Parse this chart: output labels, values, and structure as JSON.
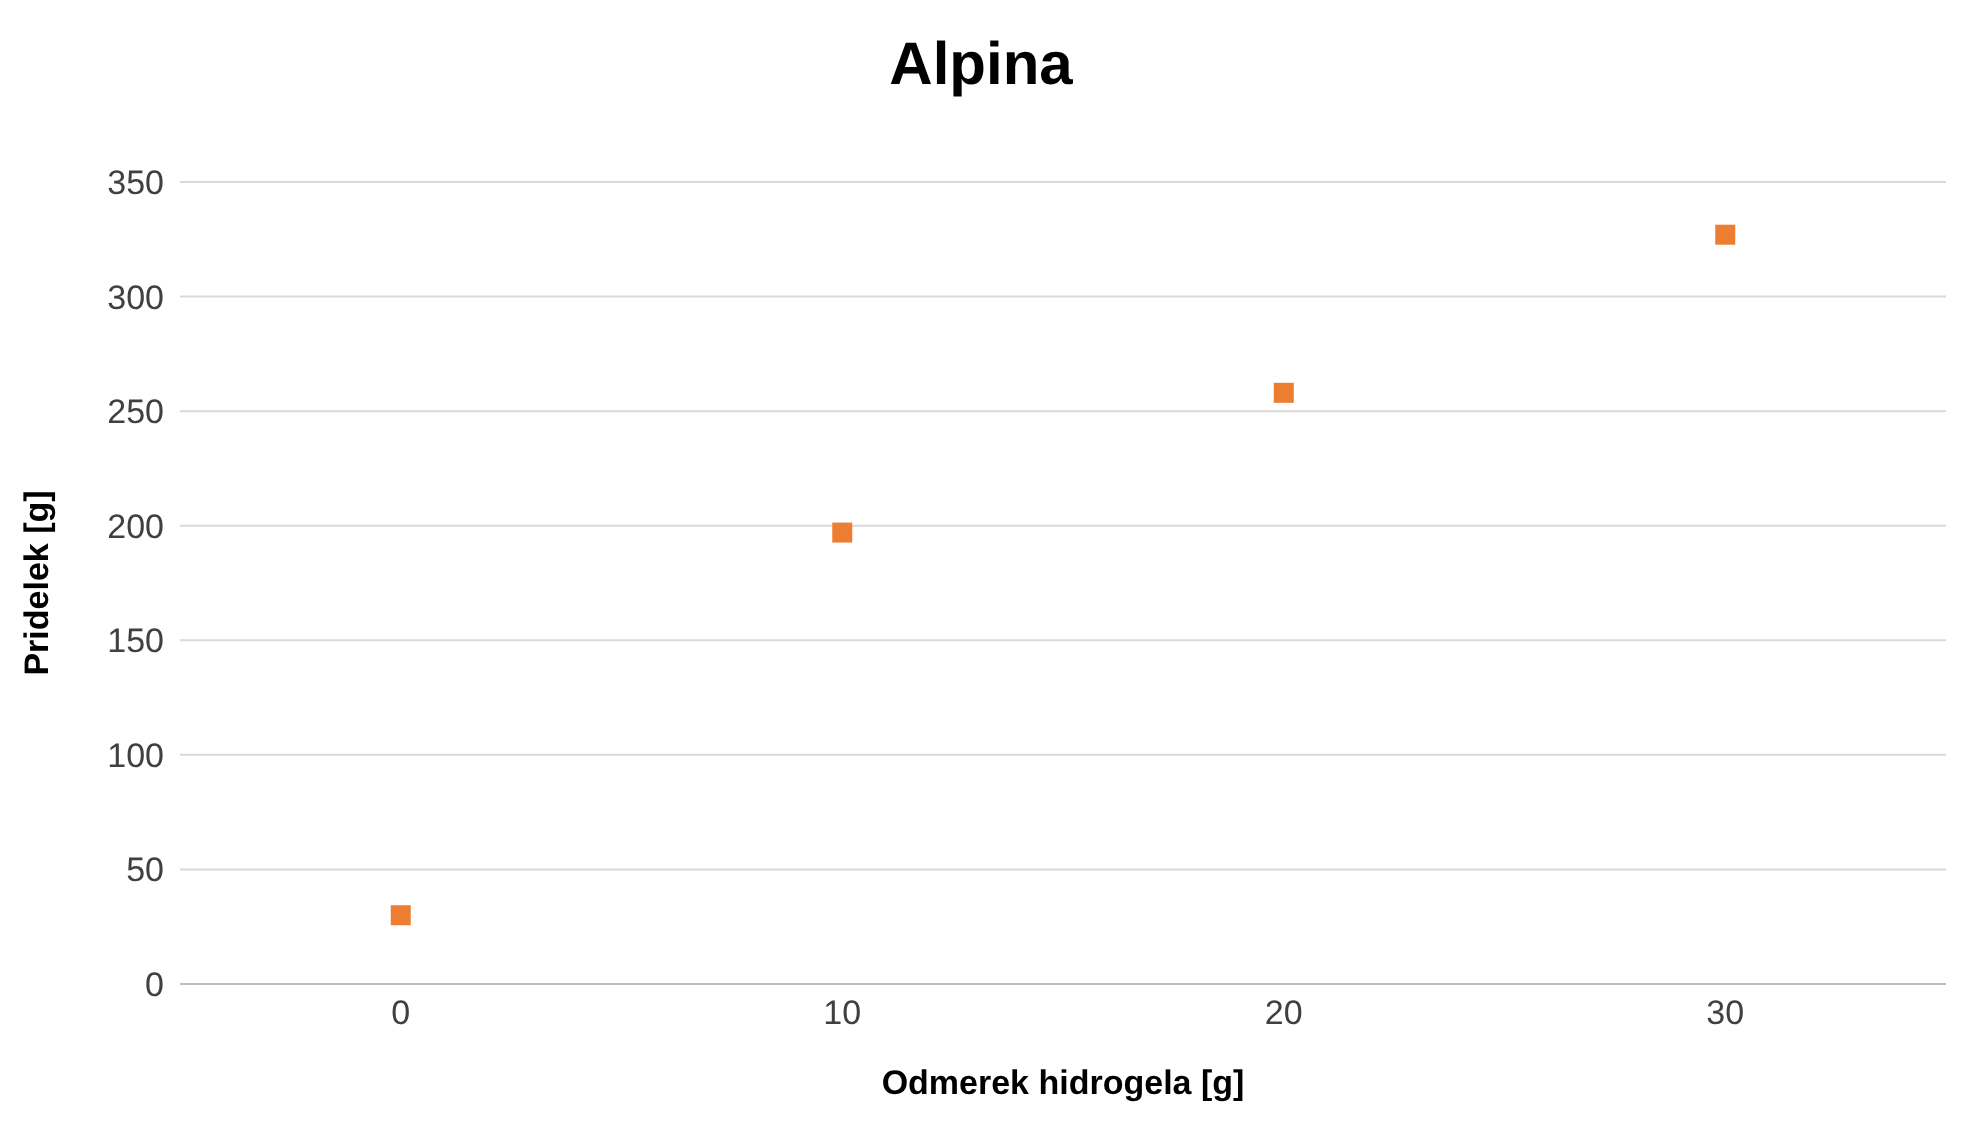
{
  "chart_data": {
    "type": "scatter",
    "title": "Alpina",
    "xlabel": "Odmerek hidrogela [g]",
    "ylabel": "Pridelek [g]",
    "categories": [
      "0",
      "10",
      "20",
      "30"
    ],
    "series": [
      {
        "color": "#ed7d31",
        "values": [
          30,
          197,
          258,
          327
        ]
      }
    ],
    "ylim": [
      0,
      350
    ],
    "yticks": [
      0,
      50,
      100,
      150,
      200,
      250,
      300,
      350
    ],
    "grid": "y",
    "marker": "square",
    "legend": false
  }
}
